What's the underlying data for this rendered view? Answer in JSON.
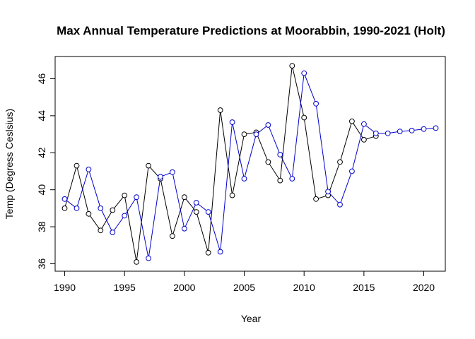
{
  "chart_data": {
    "type": "line",
    "title": "Max Annual Temperature Predictions at Moorabbin, 1990-2021 (Holt)",
    "xlabel": "Year",
    "ylabel": "Temp (Degress Ceslsius)",
    "xlim": [
      1989.2,
      2021.8
    ],
    "ylim": [
      35.6,
      47.2
    ],
    "xticks": [
      1990,
      1995,
      2000,
      2005,
      2010,
      2015,
      2020
    ],
    "yticks": [
      36,
      38,
      40,
      42,
      44,
      46
    ],
    "grid": false,
    "legend": "none",
    "series": [
      {
        "color": "#000000",
        "x": [
          1990,
          1991,
          1992,
          1993,
          1994,
          1995,
          1996,
          1997,
          1998,
          1999,
          2000,
          2001,
          2002,
          2003,
          2004,
          2005,
          2006,
          2007,
          2008,
          2009,
          2010,
          2011,
          2012,
          2013,
          2014,
          2015,
          2016
        ],
        "y": [
          39.0,
          41.3,
          38.7,
          37.8,
          38.9,
          39.7,
          36.1,
          41.3,
          40.6,
          37.5,
          39.6,
          38.8,
          36.6,
          44.3,
          39.7,
          43.0,
          43.1,
          41.5,
          40.5,
          46.7,
          43.9,
          39.5,
          39.7,
          41.5,
          43.7,
          42.7,
          42.9
        ]
      },
      {
        "color": "#0000cc",
        "x": [
          1990,
          1991,
          1992,
          1993,
          1994,
          1995,
          1996,
          1997,
          1998,
          1999,
          2000,
          2001,
          2002,
          2003,
          2004,
          2005,
          2006,
          2007,
          2008,
          2009,
          2010,
          2011,
          2012,
          2013,
          2014,
          2015,
          2016,
          2017,
          2018,
          2019,
          2020,
          2021
        ],
        "y": [
          39.5,
          39.0,
          41.1,
          39.0,
          37.7,
          38.6,
          39.6,
          36.3,
          40.7,
          40.95,
          37.9,
          39.3,
          38.8,
          36.65,
          43.65,
          40.6,
          43.0,
          43.5,
          41.9,
          40.6,
          46.3,
          44.65,
          39.9,
          39.2,
          41.0,
          43.55,
          43.05,
          43.05,
          43.15,
          43.2,
          43.28,
          43.33
        ]
      }
    ]
  }
}
